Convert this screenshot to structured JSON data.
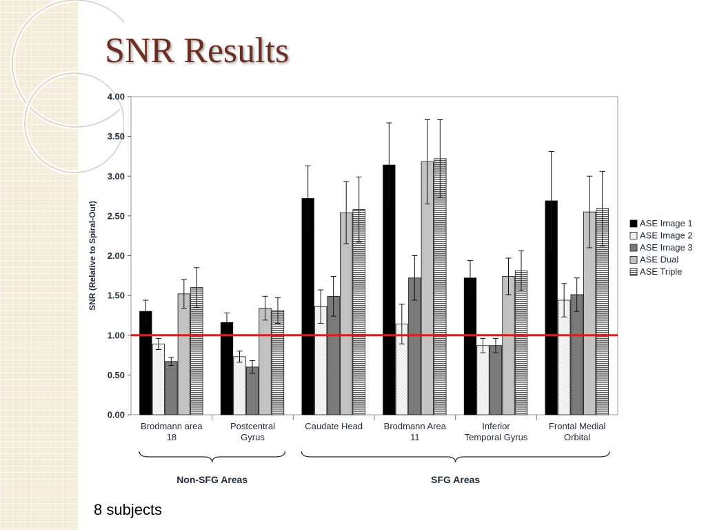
{
  "slide": {
    "title": "SNR Results",
    "footnote": "8 subjects"
  },
  "colors": {
    "title": "#6b2e22",
    "reference_line": "#d42020",
    "series": [
      "#000000",
      "#ffffff",
      "#7a7a7a",
      "#c2c2c2",
      "#8c8c8c"
    ]
  },
  "chart_data": {
    "type": "bar",
    "title": "",
    "xlabel": "",
    "ylabel": "SNR (Relative to Spiral-Out)",
    "ylim": [
      0,
      4
    ],
    "yticks": [
      "0.00",
      "0.50",
      "1.00",
      "1.50",
      "2.00",
      "2.50",
      "3.00",
      "3.50",
      "4.00"
    ],
    "grid": false,
    "legend_position": "right",
    "reference_line": 1.0,
    "categories": [
      [
        "Brodmann area",
        "18"
      ],
      [
        "Postcentral",
        "Gyrus"
      ],
      [
        "Caudate Head"
      ],
      [
        "Brodmann Area",
        "11"
      ],
      [
        "Inferior",
        "Temporal Gyrus"
      ],
      [
        "Frontal Medial",
        "Orbital"
      ]
    ],
    "series": [
      {
        "name": "ASE Image 1",
        "pattern": "solid-black",
        "values": [
          1.3,
          1.16,
          2.72,
          3.14,
          1.72,
          2.69
        ],
        "errors": [
          0.14,
          0.12,
          0.41,
          0.53,
          0.22,
          0.62
        ]
      },
      {
        "name": "ASE Image 2",
        "pattern": "dotted",
        "values": [
          0.89,
          0.73,
          1.36,
          1.14,
          0.87,
          1.44
        ],
        "errors": [
          0.07,
          0.07,
          0.21,
          0.25,
          0.09,
          0.21
        ]
      },
      {
        "name": "ASE Image 3",
        "pattern": "solid-dark-gray",
        "values": [
          0.67,
          0.6,
          1.49,
          1.72,
          0.87,
          1.51
        ],
        "errors": [
          0.05,
          0.08,
          0.25,
          0.28,
          0.09,
          0.21
        ]
      },
      {
        "name": "ASE Dual",
        "pattern": "solid-light-gray",
        "values": [
          1.52,
          1.34,
          2.54,
          3.18,
          1.74,
          2.55
        ],
        "errors": [
          0.18,
          0.15,
          0.39,
          0.53,
          0.23,
          0.45
        ]
      },
      {
        "name": "ASE Triple",
        "pattern": "horizontal-stripes",
        "values": [
          1.6,
          1.31,
          2.58,
          3.22,
          1.81,
          2.59
        ],
        "errors": [
          0.25,
          0.16,
          0.41,
          0.49,
          0.25,
          0.47
        ]
      }
    ],
    "groups": [
      {
        "label": "Non-SFG Areas",
        "categories": [
          0,
          1
        ]
      },
      {
        "label": "SFG Areas",
        "categories": [
          2,
          3,
          4,
          5
        ]
      }
    ]
  }
}
